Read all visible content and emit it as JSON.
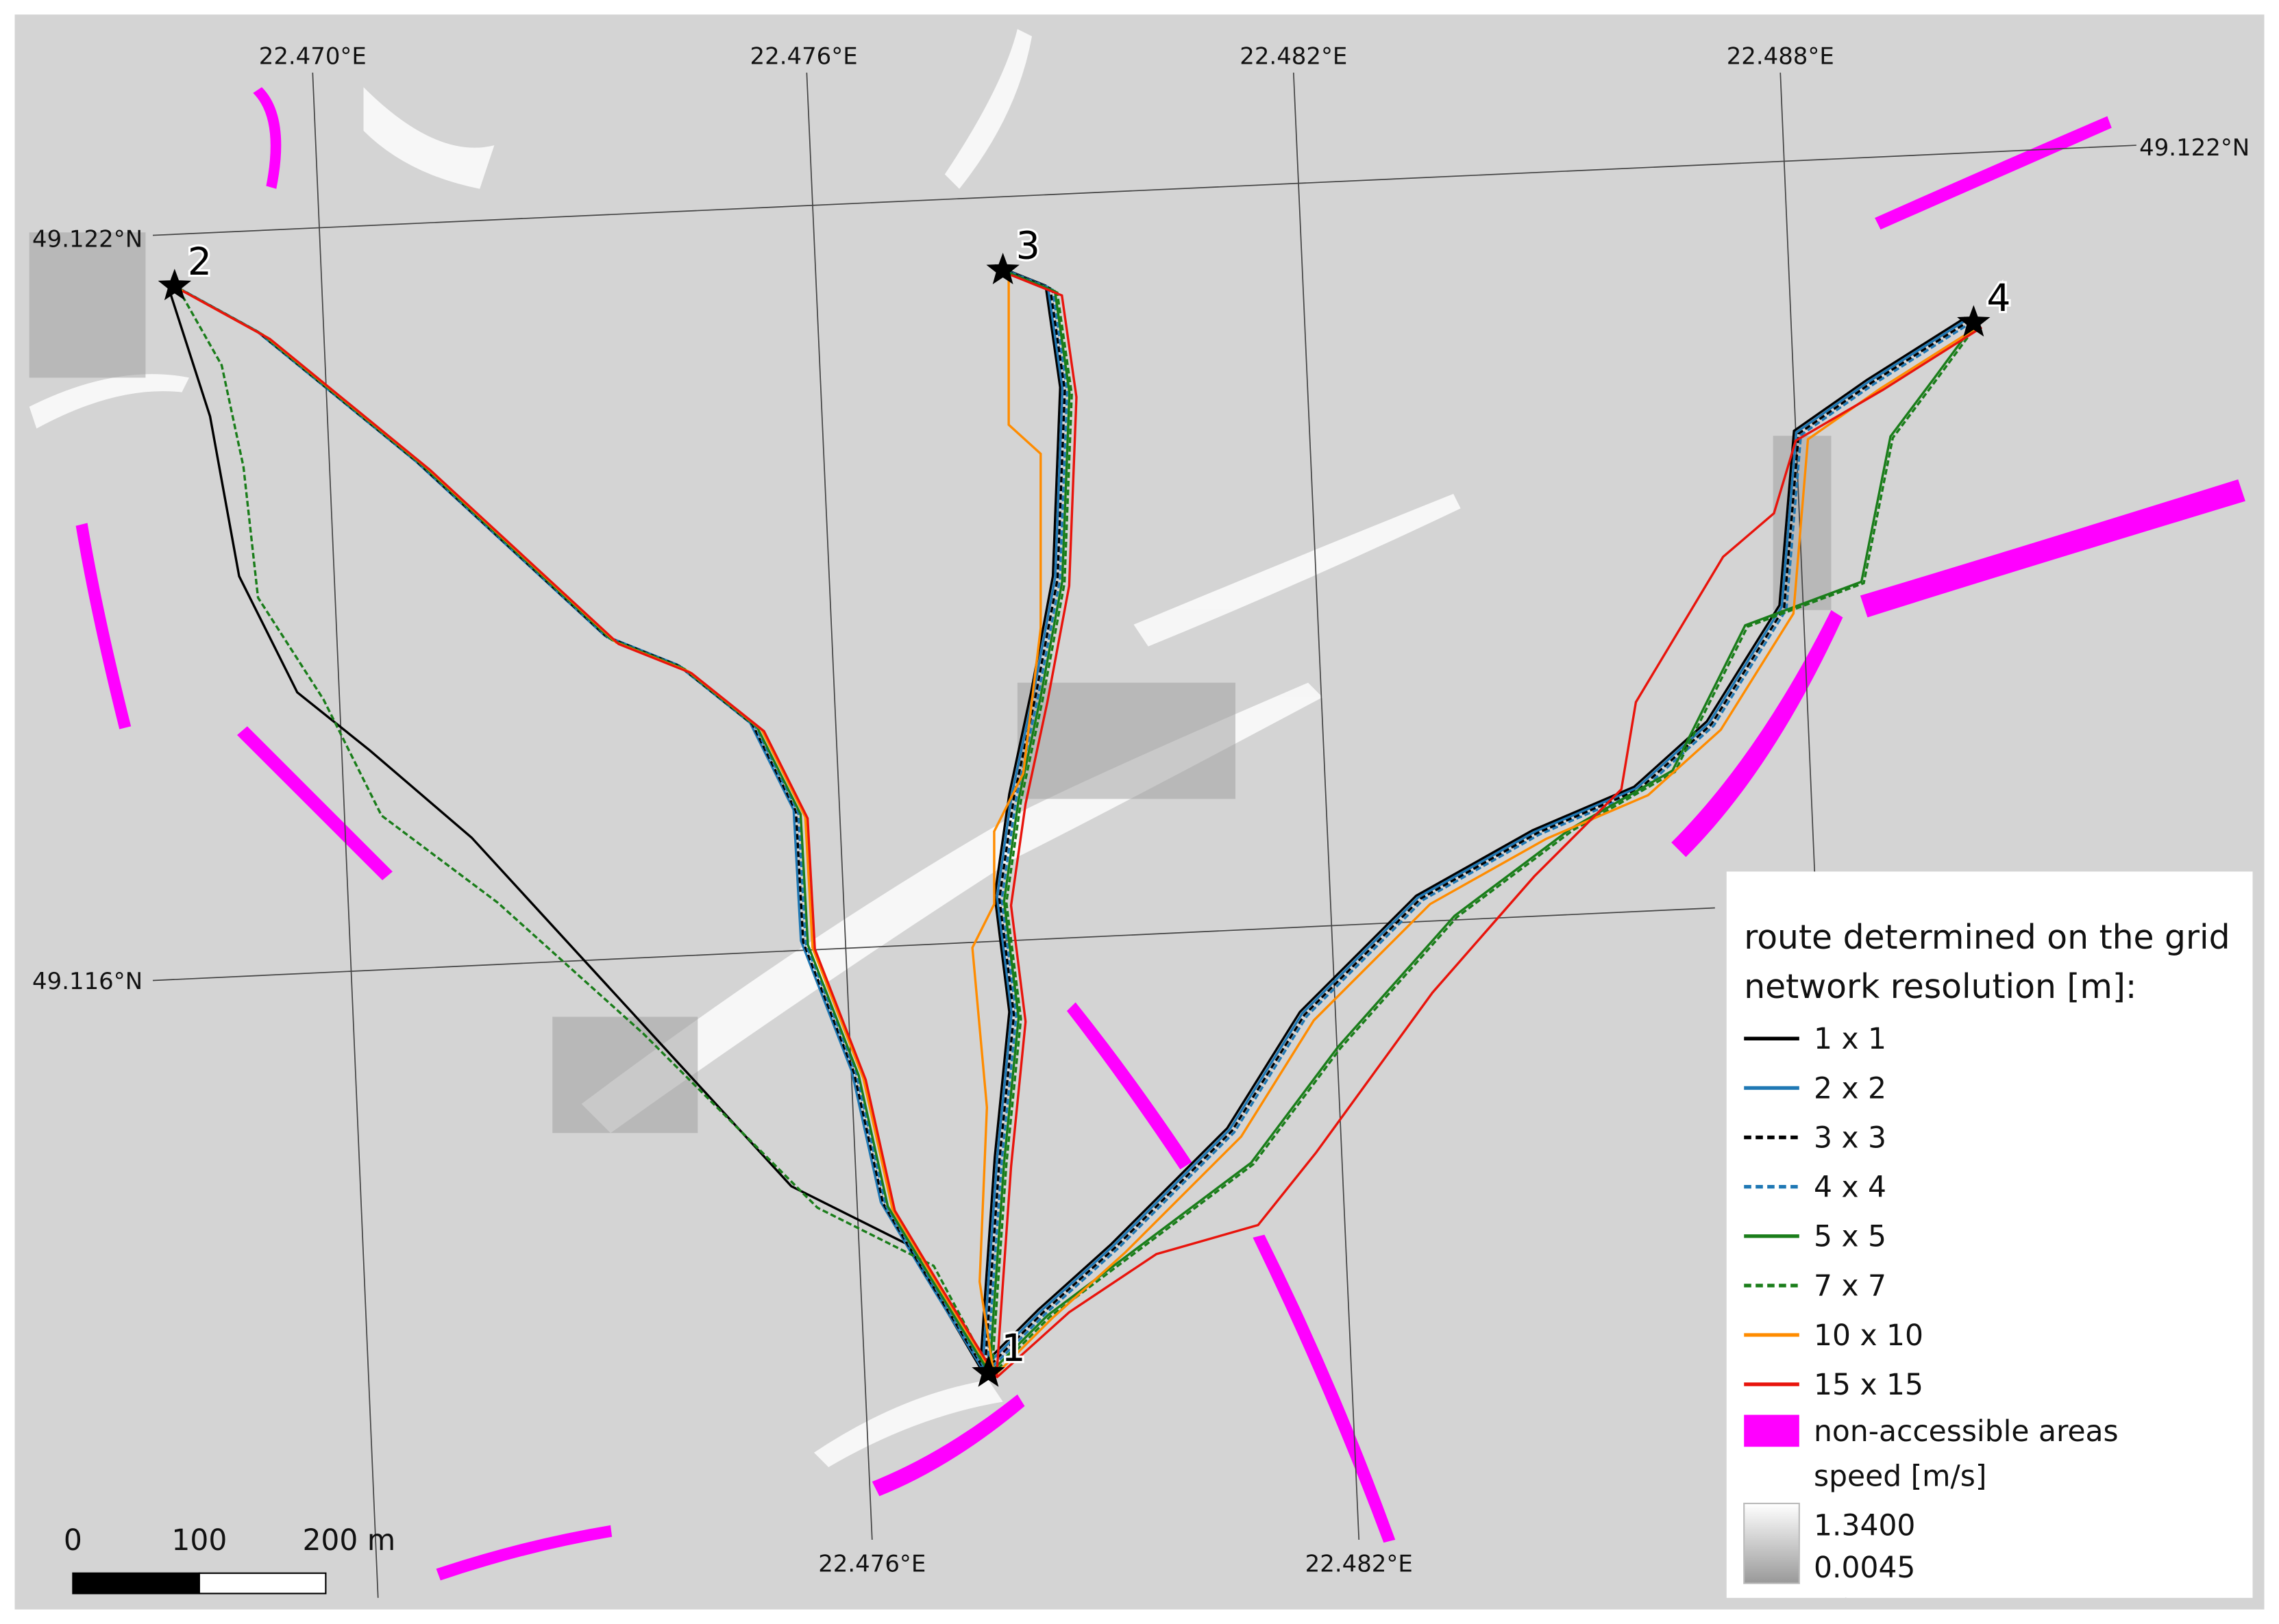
{
  "graticule": {
    "lon_top": [
      "22.470°E",
      "22.476°E",
      "22.482°E",
      "22.488°E"
    ],
    "lon_bottom": [
      "22.476°E",
      "22.482°E"
    ],
    "lat_left": [
      "49.122°N",
      "49.116°N"
    ],
    "lat_right": [
      "49.122°N"
    ]
  },
  "points": [
    "1",
    "2",
    "3",
    "4"
  ],
  "legend": {
    "title_lines": [
      "route determined on the grid",
      "network resolution [m]:"
    ],
    "items": [
      {
        "label": "1 x 1",
        "color": "#000000",
        "dashed": false
      },
      {
        "label": "2 x 2",
        "color": "#1f78b4",
        "dashed": false
      },
      {
        "label": "3 x 3",
        "color": "#000000",
        "dashed": true
      },
      {
        "label": "4 x 4",
        "color": "#1f78b4",
        "dashed": true
      },
      {
        "label": "5 x 5",
        "color": "#1a7d1a",
        "dashed": false
      },
      {
        "label": "7 x 7",
        "color": "#1a7d1a",
        "dashed": true
      },
      {
        "label": "10 x 10",
        "color": "#ff8c00",
        "dashed": false
      },
      {
        "label": "15 x 15",
        "color": "#e8140c",
        "dashed": false
      }
    ],
    "area": {
      "label": "non-accessible areas",
      "color": "#ff00ff"
    },
    "speed": {
      "label": "speed [m/s]",
      "max": "1.3400",
      "min": "0.0045"
    }
  },
  "scale_bar": [
    "0",
    "100",
    "200 m"
  ]
}
